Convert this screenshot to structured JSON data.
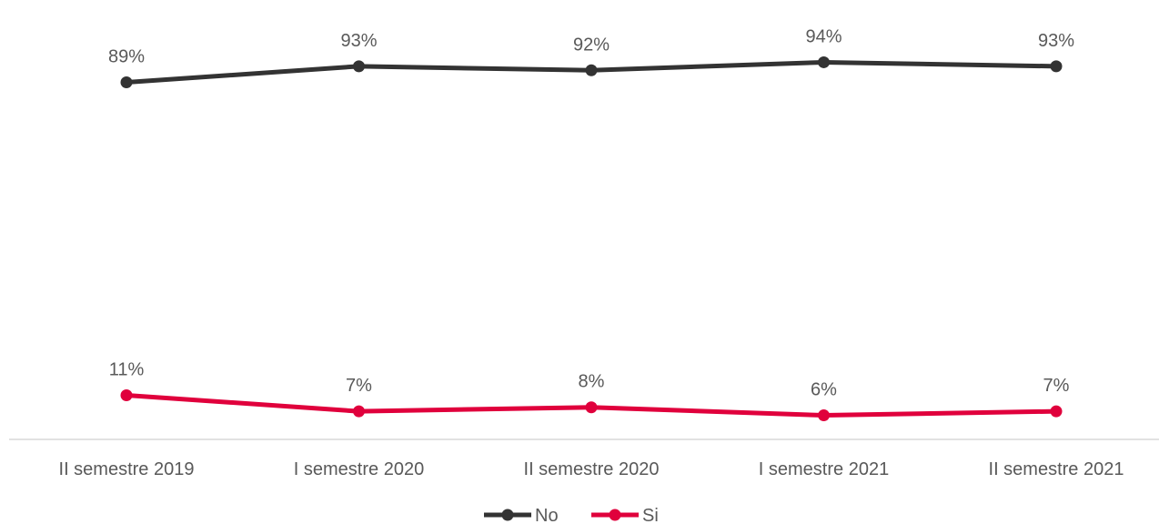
{
  "chart_data": {
    "type": "line",
    "title": "",
    "xlabel": "",
    "ylabel": "",
    "categories": [
      "II semestre 2019",
      "I semestre 2020",
      "II semestre 2020",
      "I semestre 2021",
      "II semestre 2021"
    ],
    "series": [
      {
        "name": "No",
        "color": "#333333",
        "values": [
          89,
          93,
          92,
          94,
          93
        ],
        "labels": [
          "89%",
          "93%",
          "92%",
          "94%",
          "93%"
        ]
      },
      {
        "name": "Si",
        "color": "#e0003c",
        "values": [
          11,
          7,
          8,
          6,
          7
        ],
        "labels": [
          "11%",
          "7%",
          "8%",
          "6%",
          "7%"
        ]
      }
    ],
    "ylim": [
      0,
      100
    ],
    "grid": false,
    "y_axis_visible": false,
    "legend_position": "bottom"
  }
}
